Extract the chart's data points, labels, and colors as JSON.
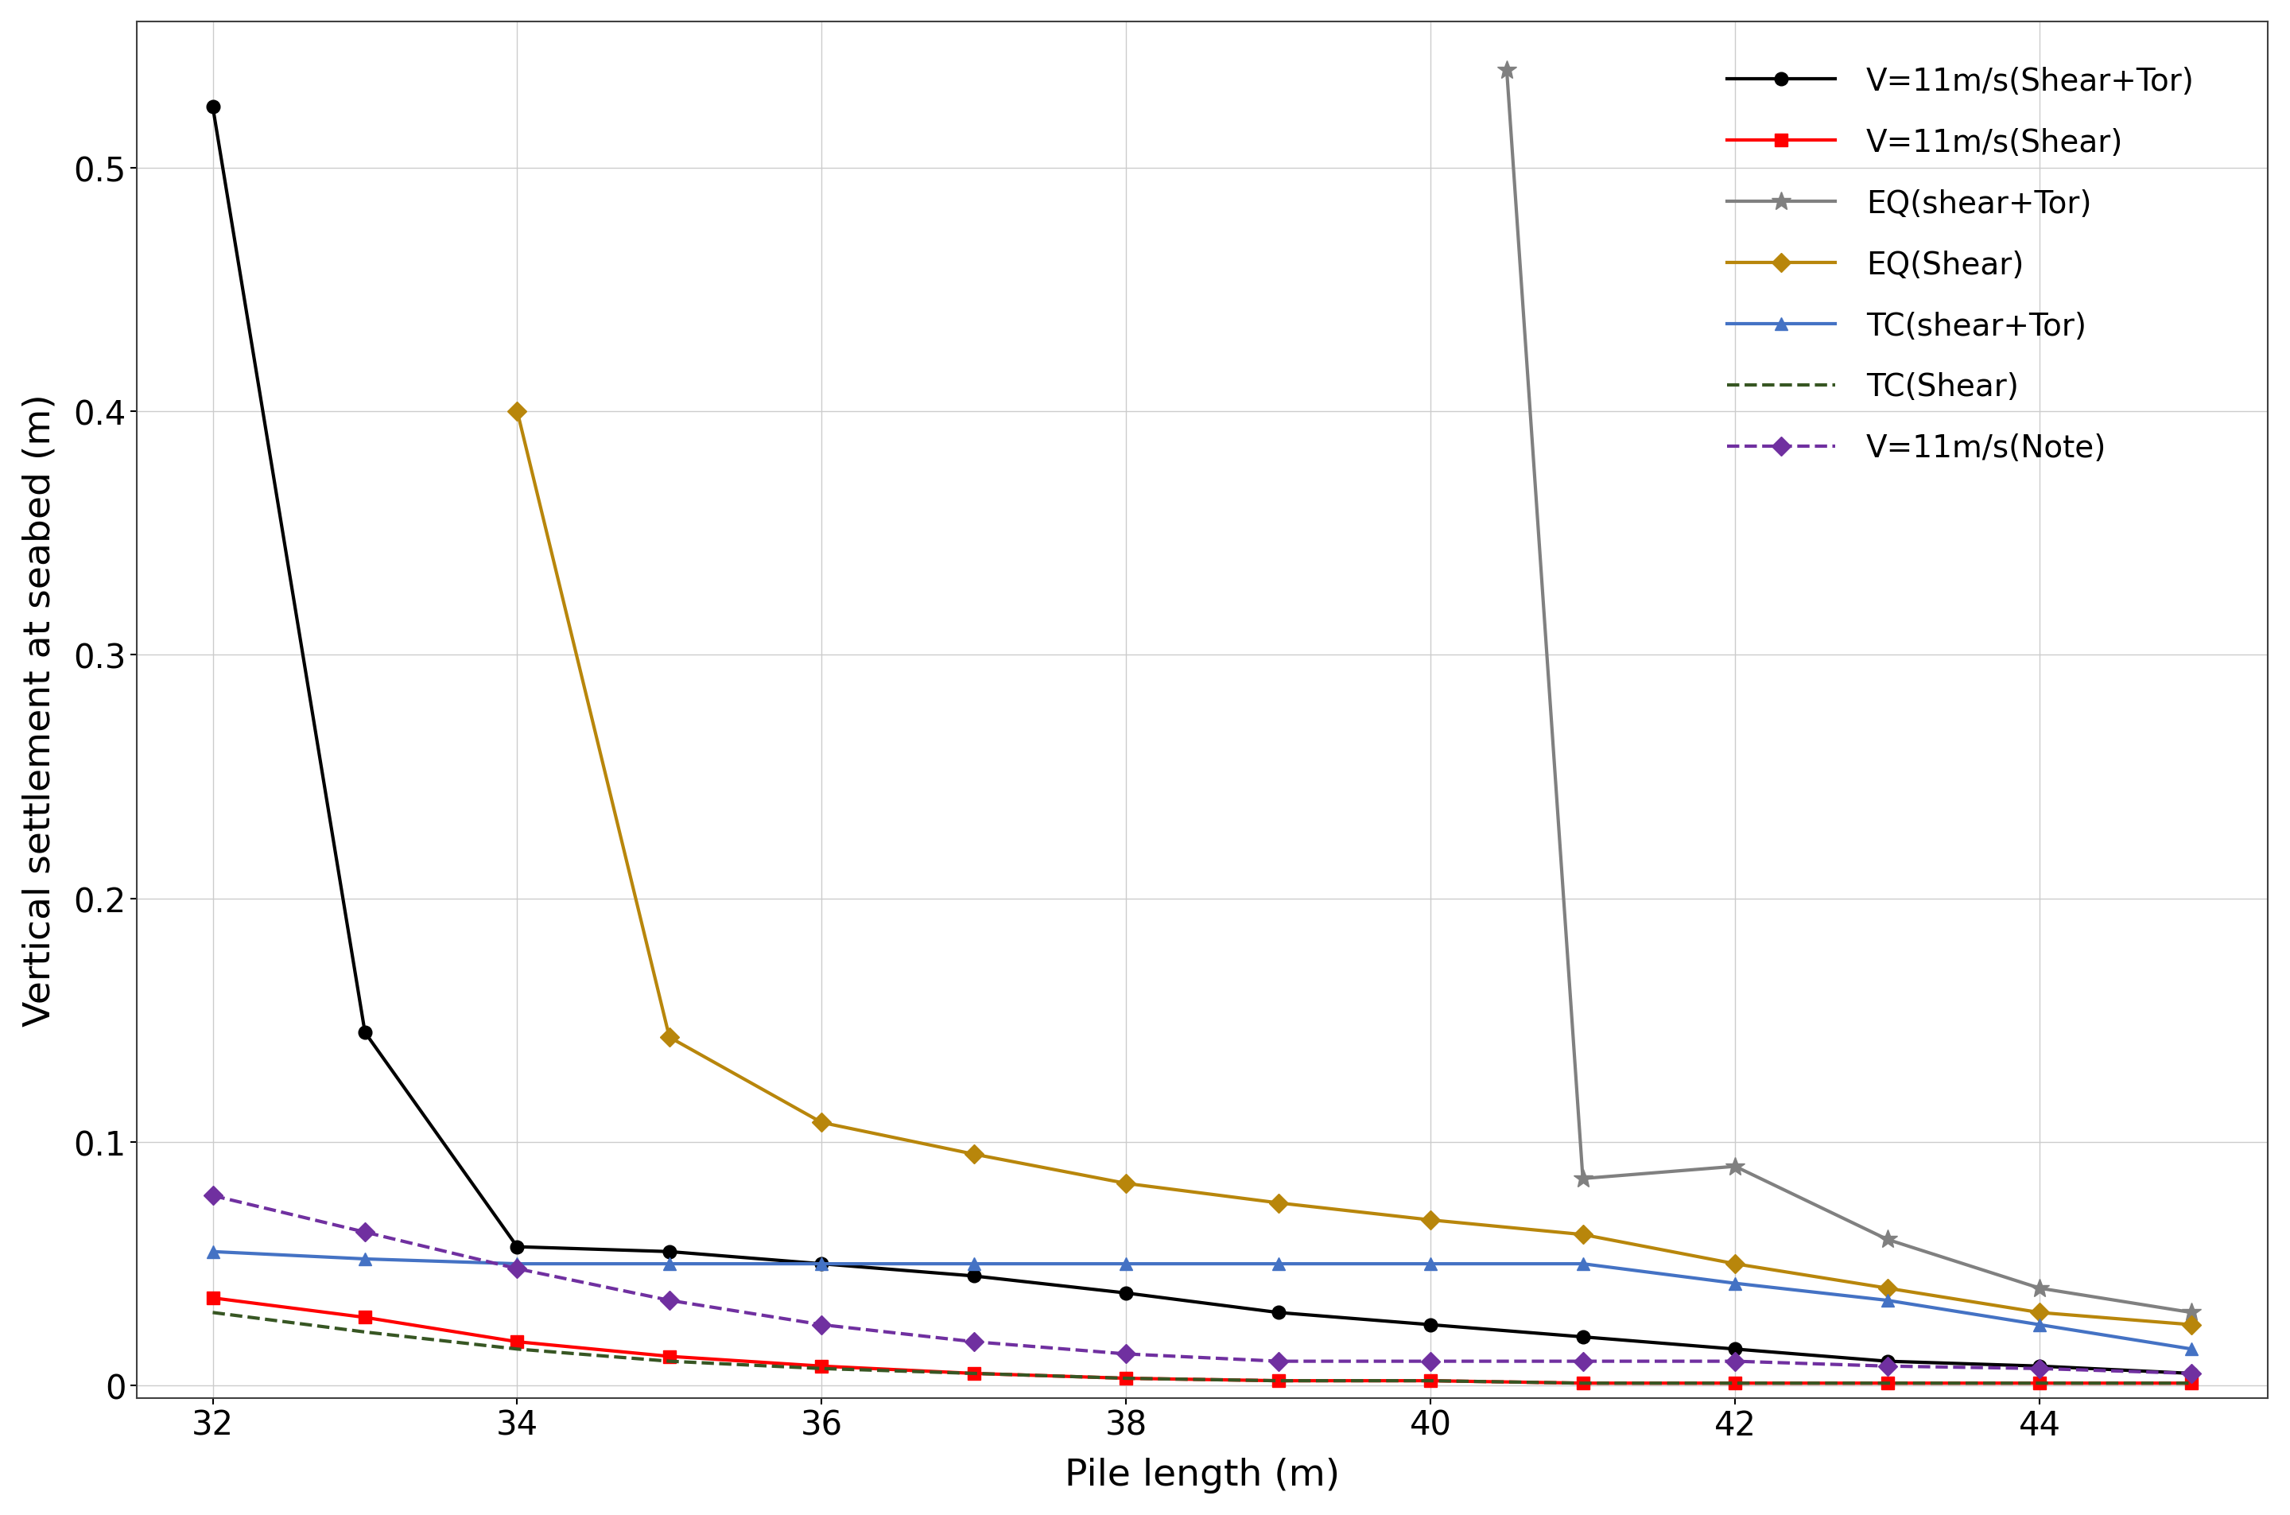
{
  "series": [
    {
      "label": "V=11m/s(Shear+Tor)",
      "color": "#000000",
      "linestyle": "-",
      "marker": "o",
      "markersize": 12,
      "linewidth": 3.0,
      "x": [
        32,
        33,
        34,
        35,
        36,
        37,
        38,
        39,
        40,
        41,
        42,
        43,
        44,
        45
      ],
      "y": [
        0.525,
        0.145,
        0.057,
        0.055,
        0.05,
        0.045,
        0.038,
        0.03,
        0.025,
        0.02,
        0.015,
        0.01,
        0.008,
        0.005
      ]
    },
    {
      "label": "V=11m/s(Shear)",
      "color": "#FF0000",
      "linestyle": "-",
      "marker": "s",
      "markersize": 12,
      "linewidth": 3.0,
      "x": [
        32,
        33,
        34,
        35,
        36,
        37,
        38,
        39,
        40,
        41,
        42,
        43,
        44,
        45
      ],
      "y": [
        0.036,
        0.028,
        0.018,
        0.012,
        0.008,
        0.005,
        0.003,
        0.002,
        0.002,
        0.001,
        0.001,
        0.001,
        0.001,
        0.001
      ]
    },
    {
      "label": "EQ(shear+Tor)",
      "color": "#808080",
      "linestyle": "-",
      "marker": "*",
      "markersize": 18,
      "linewidth": 3.0,
      "x": [
        40.5,
        41,
        42,
        43,
        44,
        45
      ],
      "y": [
        0.54,
        0.085,
        0.09,
        0.06,
        0.04,
        0.03
      ]
    },
    {
      "label": "EQ(Shear)",
      "color": "#B8860B",
      "linestyle": "-",
      "marker": "D",
      "markersize": 12,
      "linewidth": 3.0,
      "x": [
        34,
        35,
        36,
        37,
        38,
        39,
        40,
        41,
        42,
        43,
        44,
        45
      ],
      "y": [
        0.4,
        0.143,
        0.108,
        0.095,
        0.083,
        0.075,
        0.068,
        0.062,
        0.05,
        0.04,
        0.03,
        0.025
      ]
    },
    {
      "label": "TC(shear+Tor)",
      "color": "#4472C4",
      "linestyle": "-",
      "marker": "^",
      "markersize": 12,
      "linewidth": 3.0,
      "x": [
        32,
        33,
        34,
        35,
        36,
        37,
        38,
        39,
        40,
        41,
        42,
        43,
        44,
        45
      ],
      "y": [
        0.055,
        0.052,
        0.05,
        0.05,
        0.05,
        0.05,
        0.05,
        0.05,
        0.05,
        0.05,
        0.042,
        0.035,
        0.025,
        0.015
      ]
    },
    {
      "label": "TC(Shear)",
      "color": "#375623",
      "linestyle": "--",
      "marker": "None",
      "markersize": 0,
      "linewidth": 3.0,
      "x": [
        32,
        33,
        34,
        35,
        36,
        37,
        38,
        39,
        40,
        41,
        42,
        43,
        44,
        45
      ],
      "y": [
        0.03,
        0.022,
        0.015,
        0.01,
        0.007,
        0.005,
        0.003,
        0.002,
        0.002,
        0.001,
        0.001,
        0.001,
        0.001,
        0.001
      ]
    },
    {
      "label": "V=11m/s(Note)",
      "color": "#7030A0",
      "linestyle": "--",
      "marker": "D",
      "markersize": 12,
      "linewidth": 3.0,
      "x": [
        32,
        33,
        34,
        35,
        36,
        37,
        38,
        39,
        40,
        41,
        42,
        43,
        44,
        45
      ],
      "y": [
        0.078,
        0.063,
        0.048,
        0.035,
        0.025,
        0.018,
        0.013,
        0.01,
        0.01,
        0.01,
        0.01,
        0.008,
        0.007,
        0.005
      ]
    }
  ],
  "xlabel": "Pile length (m)",
  "ylabel": "Vertical settlement at seabed (m)",
  "xlim": [
    31.5,
    45.5
  ],
  "ylim": [
    -0.005,
    0.56
  ],
  "xticks": [
    32,
    34,
    36,
    38,
    40,
    42,
    44
  ],
  "yticks": [
    0.0,
    0.1,
    0.2,
    0.3,
    0.4,
    0.5
  ],
  "grid": true,
  "figure_facecolor": "#FFFFFF",
  "axis_facecolor": "#FFFFFF",
  "xlabel_fontsize": 34,
  "ylabel_fontsize": 34,
  "tick_fontsize": 30,
  "legend_fontsize": 28
}
